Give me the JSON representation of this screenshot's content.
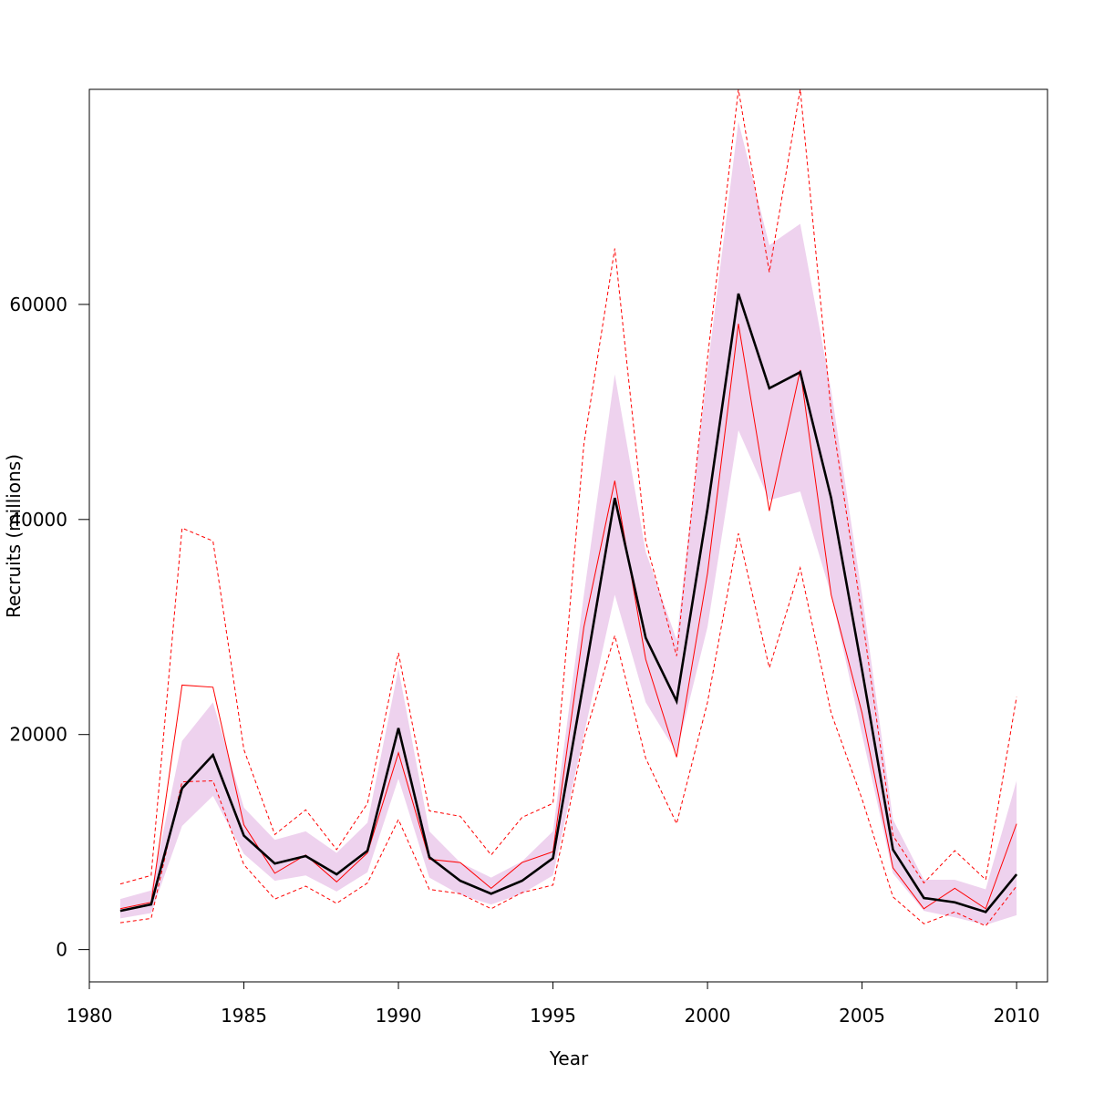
{
  "chart_data": {
    "type": "line",
    "title": "",
    "xlabel": "Year",
    "ylabel": "Recruits (millions)",
    "xlim": [
      1980,
      2011
    ],
    "ylim": [
      -3000,
      80000
    ],
    "x_ticks": [
      1980,
      1985,
      1990,
      1995,
      2000,
      2005,
      2010
    ],
    "y_ticks": [
      0,
      20000,
      40000,
      60000
    ],
    "x": [
      1981,
      1982,
      1983,
      1984,
      1985,
      1986,
      1987,
      1988,
      1989,
      1990,
      1991,
      1992,
      1993,
      1994,
      1995,
      1996,
      1997,
      1998,
      1999,
      2000,
      2001,
      2002,
      2003,
      2004,
      2005,
      2006,
      2007,
      2008,
      2009,
      2010
    ],
    "series": [
      {
        "color": "#000000",
        "style": "solid-thick",
        "values": [
          3600,
          4200,
          15000,
          18100,
          10600,
          8000,
          8700,
          7000,
          9200,
          20600,
          8600,
          6400,
          5200,
          6400,
          8500,
          25000,
          42000,
          29000,
          23100,
          41000,
          61000,
          52200,
          53700,
          42000,
          26000,
          9300,
          4800,
          4400,
          3500,
          7000
        ]
      },
      {
        "color": "#ff0000",
        "style": "solid-thin",
        "values": [
          3800,
          4400,
          24600,
          24400,
          11600,
          7100,
          8800,
          6300,
          9000,
          18300,
          8400,
          8100,
          5700,
          8100,
          9100,
          30000,
          43600,
          27000,
          17900,
          35000,
          58200,
          40800,
          53900,
          33000,
          22000,
          7600,
          3800,
          5700,
          3800,
          11700
        ]
      },
      {
        "color": "#ff0000",
        "style": "dashed",
        "values": [
          6100,
          6900,
          39200,
          38000,
          18600,
          10700,
          13000,
          9300,
          13600,
          27600,
          12900,
          12400,
          8800,
          12300,
          13600,
          47000,
          65200,
          38000,
          27300,
          55000,
          80000,
          63000,
          80000,
          50000,
          31000,
          10600,
          6200,
          9200,
          6500,
          23500
        ]
      },
      {
        "color": "#ff0000",
        "style": "dashed",
        "values": [
          2500,
          2900,
          15600,
          15700,
          7900,
          4700,
          5900,
          4300,
          6200,
          12100,
          5600,
          5200,
          3800,
          5300,
          6000,
          19600,
          29200,
          17800,
          11700,
          23000,
          38700,
          26200,
          35500,
          22000,
          14000,
          4900,
          2400,
          3500,
          2200,
          5900
        ]
      }
    ],
    "band": {
      "color": "#eed2ee",
      "lower": [
        2900,
        3400,
        11500,
        14300,
        8900,
        6400,
        6900,
        5400,
        7200,
        15900,
        6700,
        5100,
        4200,
        5200,
        6900,
        20000,
        33000,
        23000,
        18300,
        30000,
        48300,
        41800,
        42600,
        33000,
        20000,
        7100,
        3600,
        3000,
        2300,
        3200
      ],
      "upper": [
        4700,
        5500,
        19400,
        23000,
        13200,
        10200,
        11000,
        9000,
        11800,
        26100,
        11000,
        8100,
        6700,
        8200,
        11000,
        33000,
        53500,
        37000,
        28800,
        54000,
        77000,
        65500,
        67500,
        52000,
        33000,
        12100,
        6500,
        6500,
        5600,
        15700
      ]
    }
  }
}
